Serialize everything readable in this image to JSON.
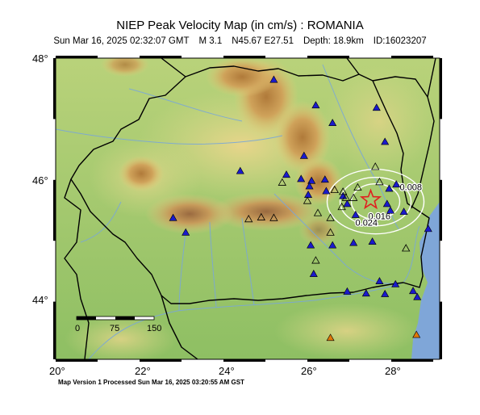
{
  "header": {
    "title": "NIEP Peak Velocity Map (in cm/s) : ROMANIA",
    "date": "Sun Mar 16, 2025 02:32:07 GMT",
    "magnitude": "M 3.1",
    "location": "N45.67 E27.51",
    "depth": "Depth: 18.9km",
    "event_id": "ID:16023207"
  },
  "axes": {
    "lat_labels": [
      "48",
      "46",
      "44"
    ],
    "lon_labels": [
      "20",
      "22",
      "24",
      "26",
      "28"
    ]
  },
  "scale_bar": {
    "labels": [
      "0",
      "75",
      "150"
    ]
  },
  "contours": {
    "labels": [
      "0.008",
      "0.016",
      "0.024"
    ]
  },
  "footer": {
    "text": "Map Version 1 Processed Sun Mar 16, 2025 03:20:55 AM GST"
  },
  "colors": {
    "sea": "#7fa6d8",
    "station_blue": "#1a1acc",
    "station_orange": "#e0780a",
    "epicenter": "#e02020",
    "contour": "#ffffff"
  },
  "stations": {
    "active": [
      [
        25.2,
        47.64
      ],
      [
        26.2,
        47.22
      ],
      [
        26.6,
        46.93
      ],
      [
        27.65,
        47.18
      ],
      [
        27.85,
        46.62
      ],
      [
        24.4,
        46.14
      ],
      [
        25.5,
        46.08
      ],
      [
        25.92,
        46.39
      ],
      [
        25.85,
        46.01
      ],
      [
        26.1,
        45.98
      ],
      [
        26.42,
        46.0
      ],
      [
        26.05,
        45.89
      ],
      [
        26.02,
        45.75
      ],
      [
        26.45,
        45.81
      ],
      [
        26.95,
        45.6
      ],
      [
        26.85,
        45.73
      ],
      [
        27.95,
        45.85
      ],
      [
        28.12,
        45.92
      ],
      [
        27.9,
        45.6
      ],
      [
        27.98,
        45.49
      ],
      [
        28.3,
        45.47
      ],
      [
        28.88,
        45.19
      ],
      [
        27.15,
        45.42
      ],
      [
        22.8,
        45.37
      ],
      [
        23.1,
        45.13
      ],
      [
        26.08,
        44.92
      ],
      [
        26.6,
        44.92
      ],
      [
        27.1,
        44.96
      ],
      [
        27.55,
        44.98
      ],
      [
        26.15,
        44.45
      ],
      [
        26.95,
        44.16
      ],
      [
        27.4,
        44.13
      ],
      [
        27.85,
        44.12
      ],
      [
        28.1,
        44.28
      ],
      [
        28.52,
        44.17
      ],
      [
        28.62,
        44.07
      ],
      [
        27.72,
        44.33
      ]
    ],
    "inactive": [
      [
        25.4,
        45.95
      ],
      [
        26.65,
        45.83
      ],
      [
        26.85,
        45.8
      ],
      [
        26.92,
        45.7
      ],
      [
        27.1,
        45.7
      ],
      [
        27.2,
        45.87
      ],
      [
        27.62,
        46.21
      ],
      [
        27.72,
        45.96
      ],
      [
        26.0,
        45.65
      ],
      [
        26.25,
        45.45
      ],
      [
        26.55,
        45.37
      ],
      [
        26.82,
        45.55
      ],
      [
        24.6,
        45.35
      ],
      [
        24.9,
        45.38
      ],
      [
        25.2,
        45.37
      ],
      [
        26.55,
        45.13
      ],
      [
        26.2,
        44.67
      ],
      [
        28.35,
        44.87
      ]
    ],
    "outside": [
      [
        26.55,
        43.4
      ],
      [
        28.6,
        43.45
      ]
    ]
  },
  "epicenter": {
    "lon": 27.51,
    "lat": 45.67
  }
}
